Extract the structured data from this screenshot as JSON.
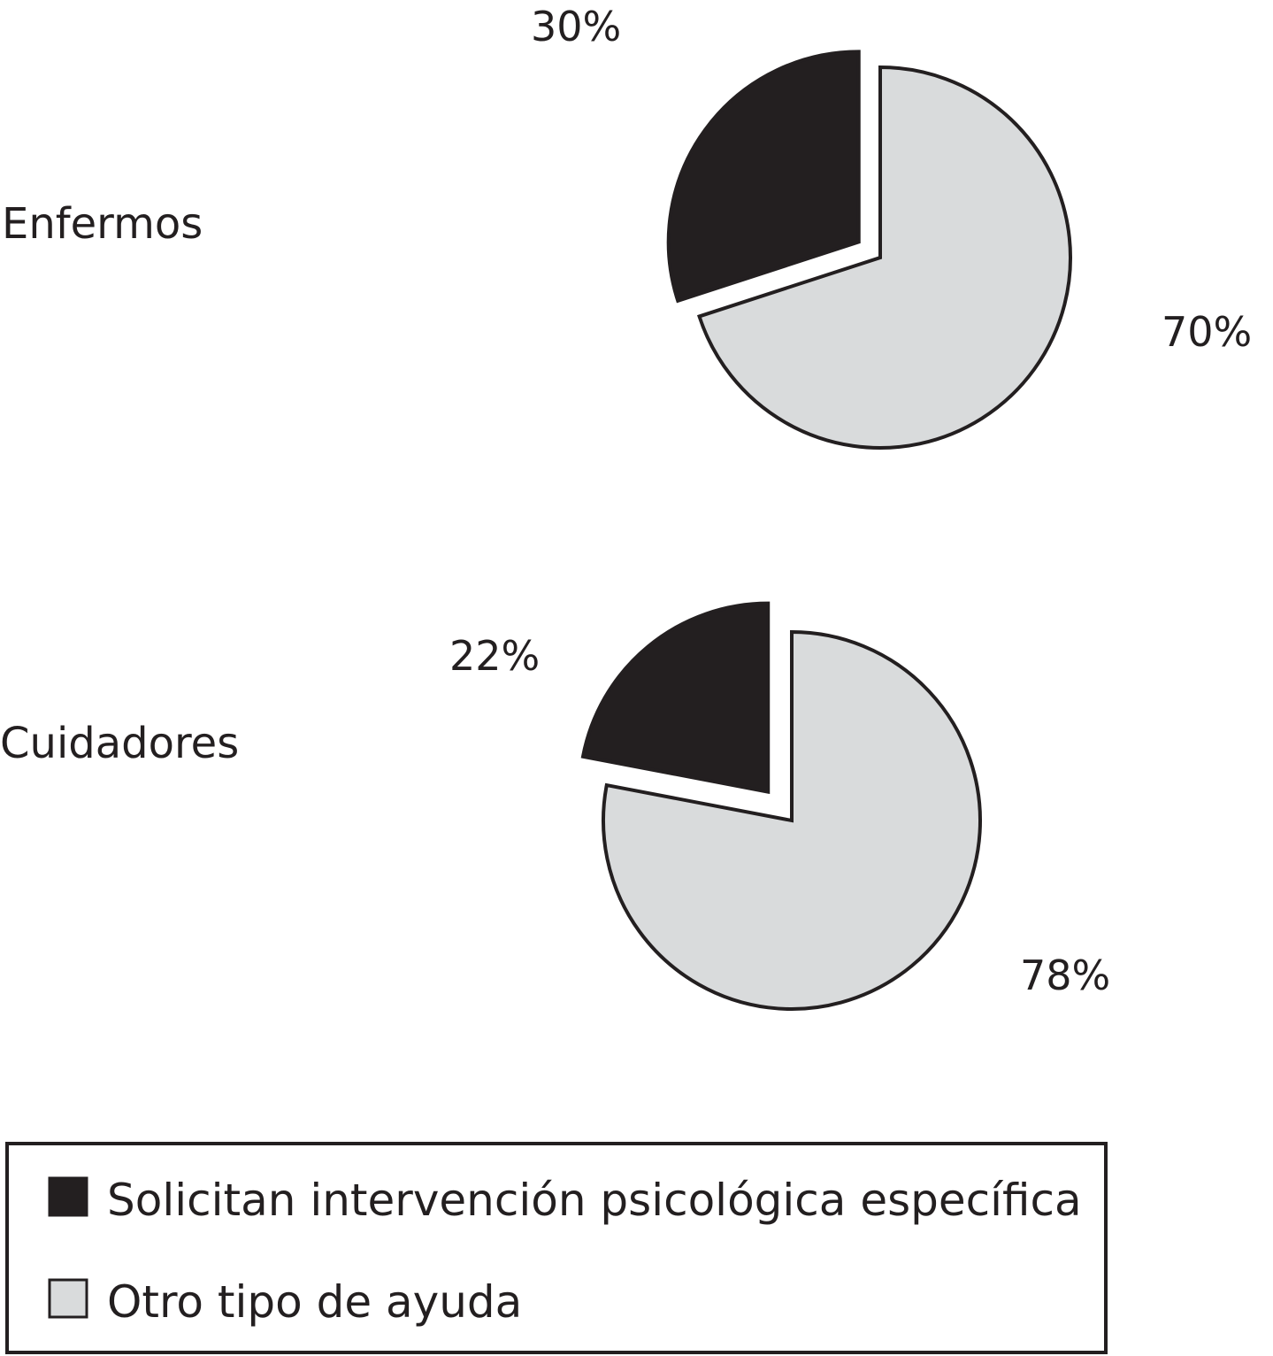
{
  "chart_data": [
    {
      "type": "pie",
      "group_label": "Enfermos",
      "slices": [
        {
          "name": "Solicitan intervención psicológica específica",
          "value": 30,
          "label": "30%",
          "exploded": true
        },
        {
          "name": "Otro tipo de ayuda",
          "value": 70,
          "label": "70%",
          "exploded": false
        }
      ]
    },
    {
      "type": "pie",
      "group_label": "Cuidadores",
      "slices": [
        {
          "name": "Solicitan intervención psicológica específica",
          "value": 22,
          "label": "22%",
          "exploded": true
        },
        {
          "name": "Otro tipo de ayuda",
          "value": 78,
          "label": "78%",
          "exploded": false
        }
      ]
    }
  ],
  "legend": {
    "placement": "bottom",
    "items": [
      {
        "label": "Solicitan intervención psicológica específica",
        "color": "#231f20"
      },
      {
        "label": "Otro tipo de ayuda",
        "color": "#d9dbdc"
      }
    ]
  },
  "colors": {
    "dark_slice": "#231f20",
    "light_slice": "#d9dbdc",
    "stroke": "#231f20",
    "text": "#231f20"
  }
}
